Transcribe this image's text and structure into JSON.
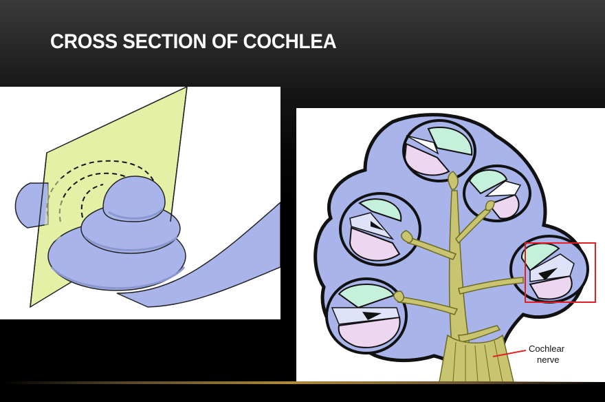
{
  "slide": {
    "title": "CROSS SECTION OF COCHLEA"
  },
  "right_figure": {
    "label_line1": "Cochlear",
    "label_line2": "nerve"
  },
  "colors": {
    "plane": "#e4f0a6",
    "cochlea_blue": "#a8b4ea",
    "scala_green": "#c4f0dc",
    "scala_pink": "#ecd6f0",
    "nerve": "#c8c470",
    "highlight_box": "#e02020",
    "accent_gold": "#b08a3e"
  }
}
